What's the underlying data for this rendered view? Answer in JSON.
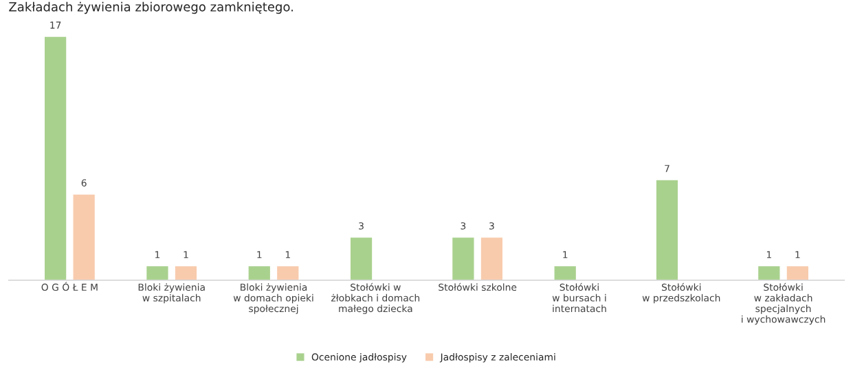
{
  "chart_data": {
    "type": "bar",
    "title": "Zakładach żywienia zbiorowego zamkniętego.",
    "categories": [
      "O G Ó Ł E M",
      "Bloki żywienia\nw szpitalach",
      "Bloki żywienia\nw domach opieki\nspołecznej",
      "Stołówki w\nżłobkach i domach\nmałego dziecka",
      "Stołówki szkolne",
      "Stołówki\nw bursach i\ninternatach",
      "Stołówki\nw przedszkolach",
      "Stołówki\nw zakładach\nspecjalnych\ni wychowawczych"
    ],
    "series": [
      {
        "name": "Ocenione jadłospisy",
        "color": "#a9d18e",
        "values": [
          17,
          1,
          1,
          3,
          3,
          1,
          7,
          1
        ]
      },
      {
        "name": "Jadłospisy z zaleceniami",
        "color": "#f8cbad",
        "values": [
          6,
          1,
          1,
          null,
          3,
          null,
          null,
          1
        ]
      }
    ],
    "data_labels": true,
    "legend": "bottom",
    "grid": false
  }
}
